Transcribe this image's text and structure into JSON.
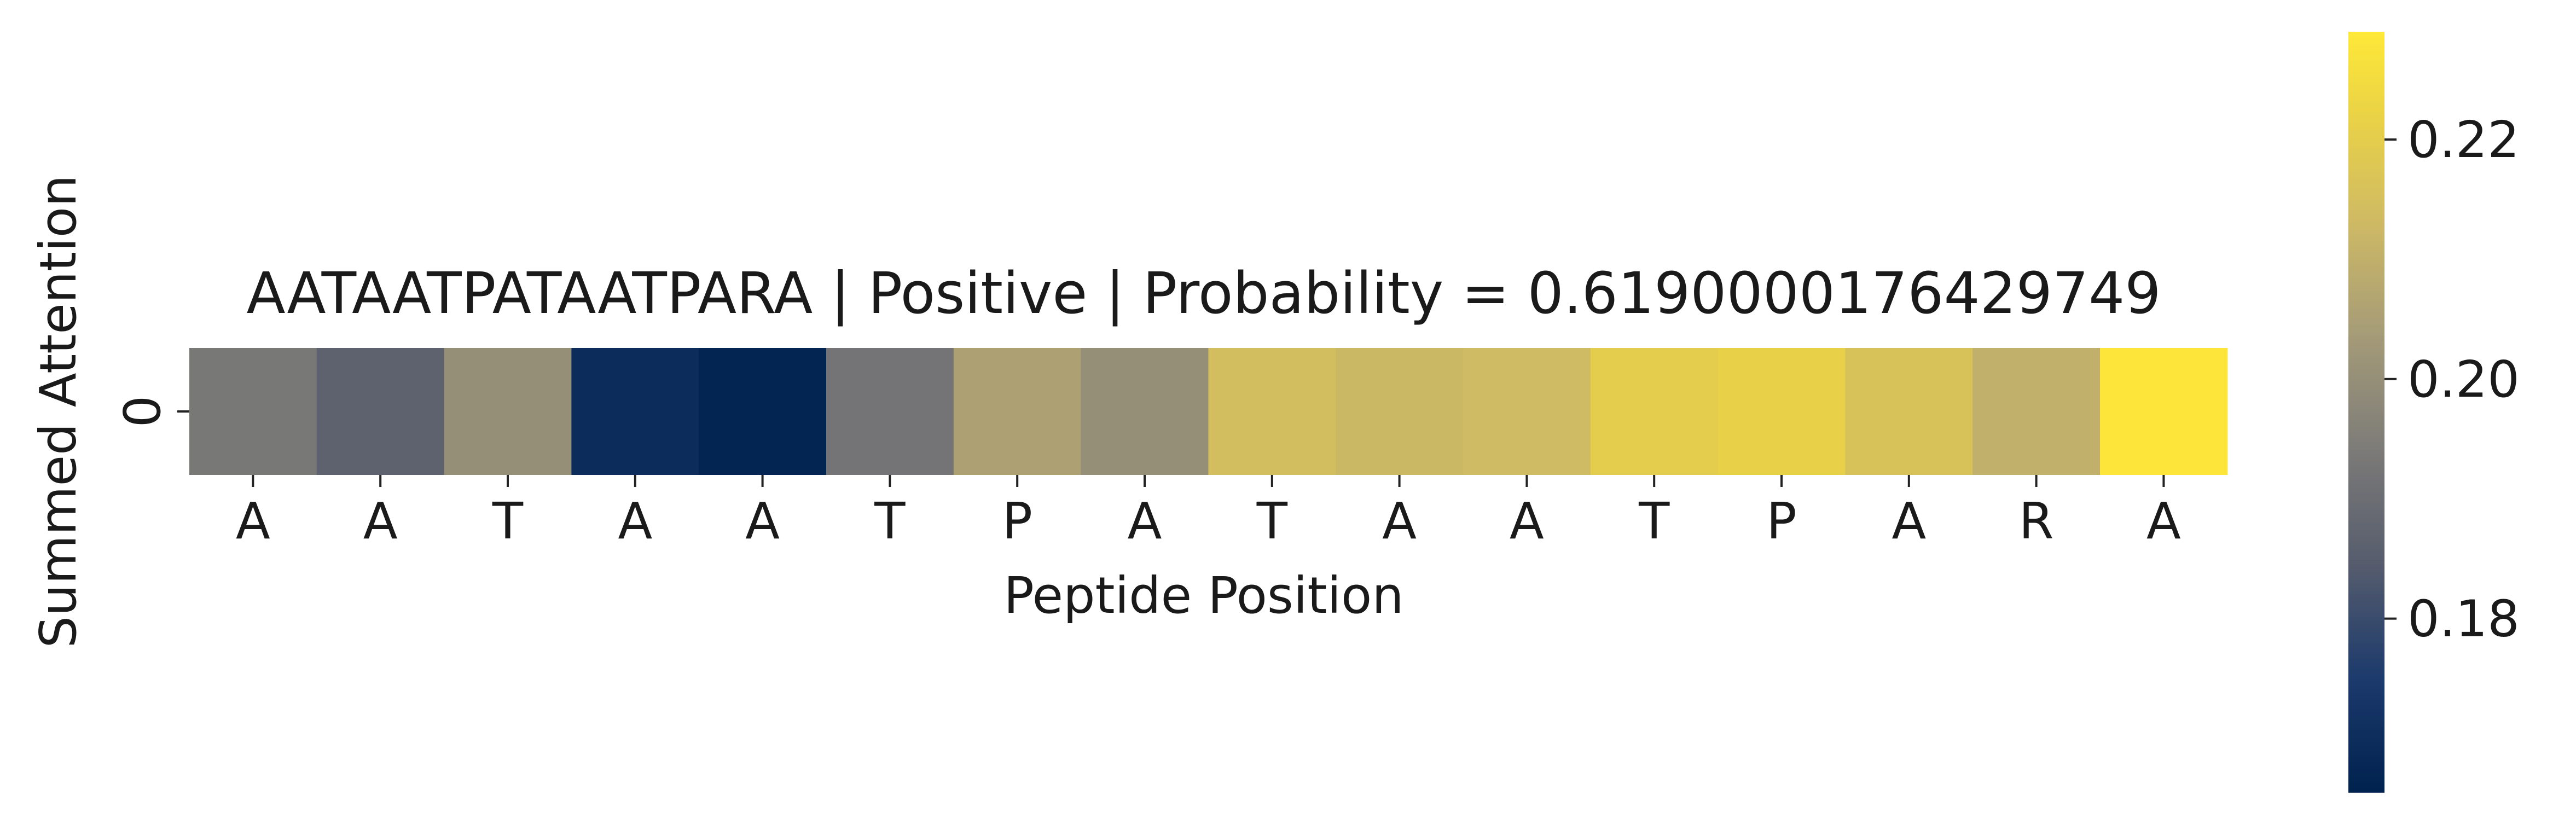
{
  "chart_data": {
    "type": "heatmap",
    "title": "AATAATPATAATPARA | Positive | Probability = 0.6190000176429749",
    "xlabel": "Peptide Position",
    "ylabel": "Summed Attention",
    "x_ticklabels": [
      "A",
      "A",
      "T",
      "A",
      "A",
      "T",
      "P",
      "A",
      "T",
      "A",
      "A",
      "T",
      "P",
      "A",
      "R",
      "A"
    ],
    "y_ticklabels": [
      "0"
    ],
    "values": [
      0.193,
      0.1865,
      0.2,
      0.1695,
      0.1665,
      0.192,
      0.2055,
      0.2,
      0.2145,
      0.2125,
      0.2135,
      0.22,
      0.2215,
      0.216,
      0.21,
      0.2285
    ],
    "colormap": "cividis",
    "vmin": 0.1655,
    "vmax": 0.229,
    "colorbar_ticks": [
      "0.18",
      "0.20",
      "0.22"
    ],
    "colorbar_tick_values": [
      0.18,
      0.2,
      0.22
    ]
  }
}
